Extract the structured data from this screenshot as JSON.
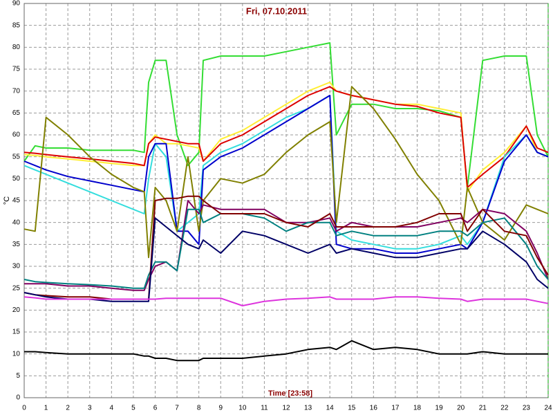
{
  "chart_data": {
    "type": "line",
    "title": "Fri, 07.10.2011",
    "xlabel": "Time [23:58]",
    "ylabel": "°C",
    "xlim": [
      0,
      24
    ],
    "ylim": [
      0,
      90
    ],
    "xticks": [
      0,
      1,
      2,
      3,
      4,
      5,
      6,
      7,
      8,
      9,
      10,
      11,
      12,
      13,
      14,
      15,
      16,
      17,
      18,
      19,
      20,
      21,
      22,
      23,
      24
    ],
    "yticks": [
      0,
      5,
      10,
      15,
      20,
      25,
      30,
      35,
      40,
      45,
      50,
      55,
      60,
      65,
      70,
      75,
      80,
      85,
      90
    ],
    "grid": true,
    "x": [
      0,
      0.5,
      1,
      2,
      3,
      4,
      5,
      5.5,
      5.7,
      6,
      6.5,
      7,
      7.5,
      8,
      8.2,
      9,
      10,
      11,
      12,
      13,
      14,
      14.3,
      15,
      16,
      17,
      18,
      19,
      20,
      20.3,
      21,
      22,
      23,
      23.5,
      24
    ],
    "series": [
      {
        "color": "#33dd33",
        "values": [
          54,
          57.5,
          57,
          57,
          56.5,
          56.5,
          56.5,
          56,
          72,
          77,
          77,
          60,
          53,
          56,
          77,
          78,
          78,
          78,
          79,
          80,
          81,
          60,
          67,
          67,
          66,
          66,
          65.5,
          64,
          48,
          77,
          78,
          78,
          60,
          55
        ]
      },
      {
        "color": "#ffee33",
        "values": [
          55.5,
          55.3,
          55,
          54.5,
          54,
          53.5,
          53,
          53,
          58,
          60,
          58,
          58,
          57.5,
          57,
          54,
          59,
          61,
          64,
          67,
          70,
          72,
          70,
          69,
          68,
          67,
          67,
          66,
          65,
          47,
          52,
          56,
          62,
          56,
          55
        ]
      },
      {
        "color": "#dd0000",
        "values": [
          56,
          55.8,
          55.5,
          55,
          54.5,
          54,
          53.5,
          53,
          58,
          59.5,
          59,
          58.5,
          58,
          58,
          54,
          58,
          60,
          63,
          66,
          69,
          71,
          70,
          69,
          68,
          67,
          66.5,
          65,
          64,
          48,
          51,
          55,
          62,
          57,
          56
        ]
      },
      {
        "color": "#33dddd",
        "values": [
          53,
          52,
          51,
          49,
          47,
          45,
          43,
          42,
          50,
          58,
          55,
          38,
          40,
          42,
          53,
          56,
          58,
          61,
          64,
          66,
          69,
          38,
          36,
          35,
          34,
          34,
          35,
          37,
          35,
          40,
          55,
          60,
          56,
          55
        ]
      },
      {
        "color": "#0000cc",
        "values": [
          54,
          53,
          52,
          50.5,
          49.5,
          48.5,
          47.5,
          47,
          55,
          58,
          58,
          38,
          38,
          35,
          52,
          55,
          57,
          60,
          63,
          66,
          69,
          35,
          34,
          34,
          33,
          33,
          34,
          35,
          34,
          40,
          54,
          60,
          56,
          55
        ]
      },
      {
        "color": "#808000",
        "values": [
          38.5,
          38,
          64,
          60,
          55,
          51,
          48,
          47,
          32,
          48,
          45,
          38,
          55,
          38,
          45,
          50,
          49,
          51,
          56,
          60,
          63,
          40,
          71,
          66,
          59,
          51,
          45,
          35,
          48,
          40,
          36,
          44,
          43,
          42
        ]
      },
      {
        "color": "#800060",
        "values": [
          26,
          26,
          26,
          25.5,
          25.5,
          25,
          24.5,
          24.5,
          27,
          30,
          31,
          29,
          45,
          42,
          44,
          43,
          43,
          43,
          40,
          40,
          41,
          38,
          40,
          39,
          39,
          39,
          40,
          41,
          40,
          43,
          42,
          38,
          33,
          27
        ]
      },
      {
        "color": "#008080",
        "values": [
          27,
          26.5,
          26.3,
          26,
          25.8,
          25.5,
          25,
          25,
          28,
          31,
          31,
          29,
          43,
          43,
          40,
          42,
          42,
          41,
          38,
          40,
          40,
          37,
          38,
          37,
          37,
          37,
          38,
          38,
          37,
          40,
          41,
          35,
          30,
          27
        ]
      },
      {
        "color": "#800000",
        "values": [
          24,
          23.5,
          23.3,
          23,
          23,
          22.5,
          22.5,
          22.5,
          22.5,
          45,
          45.5,
          45.5,
          46,
          46,
          45,
          42,
          42,
          42,
          40,
          39,
          42,
          39,
          39,
          39,
          39,
          40,
          42,
          42,
          38,
          43,
          38,
          37,
          32,
          28
        ]
      },
      {
        "color": "#000066",
        "values": [
          24,
          23.5,
          23,
          22.5,
          22.5,
          22,
          22,
          22,
          22,
          41,
          39,
          37,
          35,
          34,
          36,
          33,
          38,
          37,
          35,
          33,
          35,
          33,
          34,
          33,
          32,
          32,
          33,
          34,
          34,
          38,
          35,
          31,
          27,
          25
        ]
      },
      {
        "color": "#dd33dd",
        "values": [
          23,
          22.8,
          22.5,
          22.5,
          22.5,
          22.5,
          22.5,
          22.5,
          22.5,
          22.5,
          22.7,
          22.7,
          22.7,
          22.7,
          22.7,
          22.7,
          21,
          22,
          22.5,
          22.7,
          23,
          22.5,
          22.5,
          22.5,
          23,
          23,
          22.7,
          22.5,
          22,
          22.5,
          22.5,
          22.5,
          22,
          21.5
        ]
      },
      {
        "color": "#000000",
        "values": [
          10.5,
          10.5,
          10.3,
          10,
          10,
          10,
          10,
          9.5,
          9.5,
          9,
          9,
          8.5,
          8.5,
          8.5,
          9,
          9,
          9,
          9.5,
          10,
          11,
          11.5,
          11,
          13,
          11,
          11.5,
          11,
          10,
          10,
          10,
          10.5,
          10,
          10,
          10,
          10
        ]
      }
    ]
  }
}
